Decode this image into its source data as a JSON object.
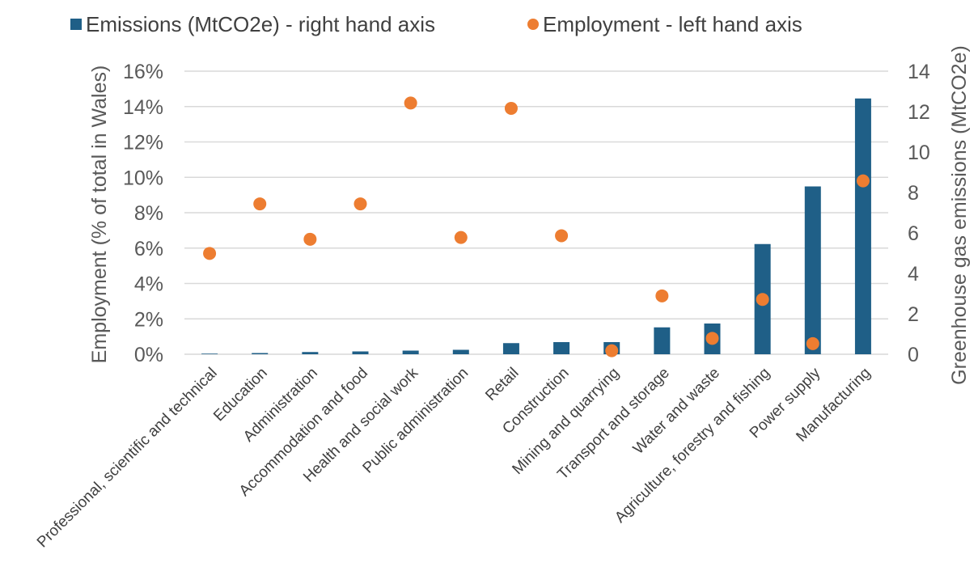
{
  "chart_data": {
    "type": "bar+scatter",
    "title": "",
    "categories": [
      "Professional, scientific and technical",
      "Education",
      "Administration",
      "Accommodation and food",
      "Health and social work",
      "Public administration",
      "Retail",
      "Construction",
      "Mining and quarrying",
      "Transport and storage",
      "Water and waste",
      "Agriculture, forestry and fishing",
      "Power supply",
      "Manufacturing"
    ],
    "series": [
      {
        "name": "Emissions (MtCO2e) - right hand axis",
        "type": "bar",
        "axis": "right",
        "color": "#1f5f87",
        "values": [
          0.03,
          0.06,
          0.11,
          0.14,
          0.18,
          0.22,
          0.55,
          0.6,
          0.6,
          1.33,
          1.52,
          5.45,
          8.3,
          12.65
        ]
      },
      {
        "name": "Employment - left hand axis",
        "type": "scatter",
        "axis": "left",
        "color": "#ed7d31",
        "values": [
          0.057,
          0.085,
          0.065,
          0.085,
          0.142,
          0.066,
          0.139,
          0.067,
          0.002,
          0.033,
          0.009,
          0.031,
          0.006,
          0.098
        ]
      }
    ],
    "left_axis": {
      "label": "Employment (% of total in Wales)",
      "ylim": [
        0,
        0.16
      ],
      "ticks": [
        "0%",
        "2%",
        "4%",
        "6%",
        "8%",
        "10%",
        "12%",
        "14%",
        "16%"
      ]
    },
    "right_axis": {
      "label": "Greenhouse gas emissions (MtCO2e)",
      "ylim": [
        0,
        14
      ],
      "ticks": [
        "0",
        "2",
        "4",
        "6",
        "8",
        "10",
        "12",
        "14"
      ]
    },
    "grid": true,
    "legend_position": "top-left"
  }
}
